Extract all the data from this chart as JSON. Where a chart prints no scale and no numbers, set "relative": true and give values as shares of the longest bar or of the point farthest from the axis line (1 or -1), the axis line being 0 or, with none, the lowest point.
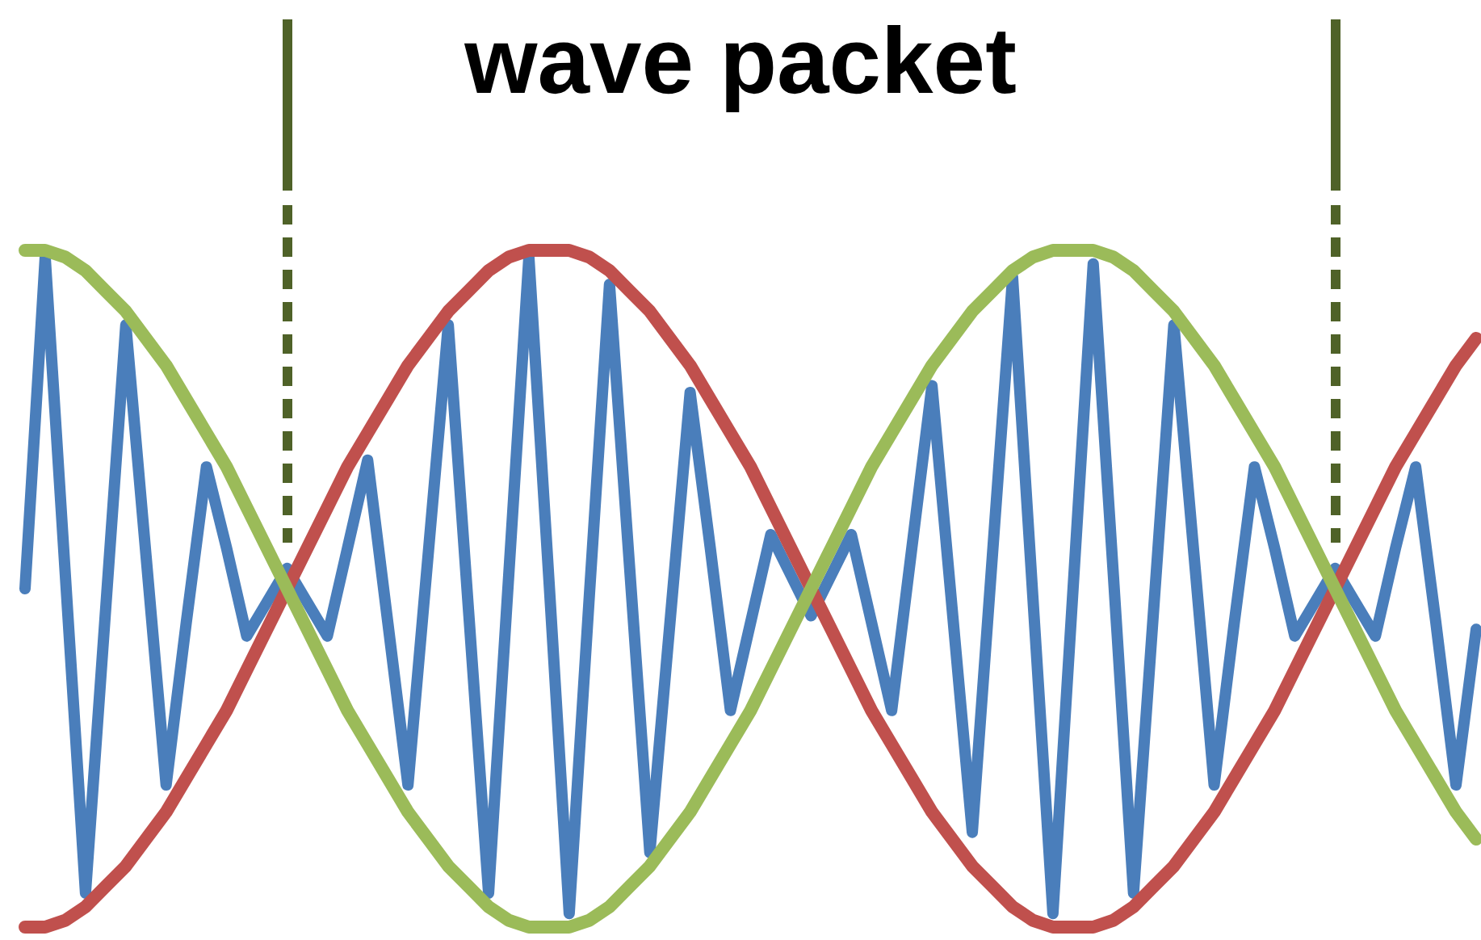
{
  "chart_data": {
    "type": "line",
    "title": "wave packet",
    "relative": true,
    "marker": "none",
    "categories": [
      null,
      null,
      null,
      null,
      null,
      null,
      null,
      null,
      null,
      null,
      null,
      null,
      null,
      null,
      null,
      null,
      null,
      null,
      null,
      null,
      null,
      null,
      null,
      null,
      null,
      null,
      null,
      null,
      null,
      null,
      null,
      null,
      null,
      null,
      null,
      null,
      null,
      null,
      null,
      null,
      null,
      null,
      null,
      null,
      null,
      null,
      null,
      null,
      null,
      null,
      null,
      null,
      null,
      null,
      null,
      null,
      null,
      null,
      null,
      null,
      null,
      null,
      null,
      null,
      null,
      null,
      null,
      null,
      null,
      null,
      null,
      null,
      null
    ],
    "series": [
      {
        "color": "#4a7ebb",
        "values": [
          0.5,
          0.99,
          0.52,
          0.05,
          0.47,
          0.89,
          0.55,
          0.21,
          0.45,
          0.68,
          0.56,
          0.43,
          0.48,
          0.53,
          0.48,
          0.43,
          0.56,
          0.69,
          0.45,
          0.21,
          0.55,
          0.89,
          0.47,
          0.05,
          0.52,
          0.99,
          0.51,
          0.02,
          0.49,
          0.95,
          0.53,
          0.11,
          0.45,
          0.79,
          0.56,
          0.32,
          0.45,
          0.58,
          0.52,
          0.46,
          0.52,
          0.58,
          0.45,
          0.32,
          0.56,
          0.8,
          0.47,
          0.14,
          0.55,
          0.96,
          0.49,
          0.02,
          0.5,
          0.98,
          0.52,
          0.05,
          0.47,
          0.89,
          0.55,
          0.21,
          0.45,
          0.68,
          0.56,
          0.43,
          0.48,
          0.53,
          0.48,
          0.43,
          0.56,
          0.68,
          0.45,
          0.21,
          0.44
        ]
      },
      {
        "color": "#c0504d",
        "values": [
          0,
          0,
          0.01,
          0.03,
          0.06,
          0.09,
          0.13,
          0.17,
          0.22,
          0.27,
          0.32,
          0.38,
          0.44,
          0.5,
          0.56,
          0.62,
          0.68,
          0.73,
          0.78,
          0.83,
          0.87,
          0.91,
          0.94,
          0.97,
          0.99,
          1,
          1,
          1,
          0.99,
          0.97,
          0.94,
          0.91,
          0.87,
          0.83,
          0.78,
          0.73,
          0.68,
          0.62,
          0.56,
          0.5,
          0.44,
          0.38,
          0.32,
          0.27,
          0.22,
          0.17,
          0.13,
          0.09,
          0.06,
          0.03,
          0.01,
          0,
          0,
          0,
          0.01,
          0.03,
          0.06,
          0.09,
          0.13,
          0.17,
          0.22,
          0.27,
          0.32,
          0.38,
          0.44,
          0.5,
          0.56,
          0.62,
          0.68,
          0.73,
          0.78,
          0.83,
          0.87
        ]
      },
      {
        "color": "#9bbb59",
        "values": [
          1,
          1,
          0.99,
          0.97,
          0.94,
          0.91,
          0.87,
          0.83,
          0.78,
          0.73,
          0.68,
          0.62,
          0.56,
          0.5,
          0.44,
          0.38,
          0.32,
          0.27,
          0.22,
          0.17,
          0.13,
          0.09,
          0.06,
          0.03,
          0.01,
          0,
          0,
          0,
          0.01,
          0.03,
          0.06,
          0.09,
          0.13,
          0.17,
          0.22,
          0.27,
          0.32,
          0.38,
          0.44,
          0.5,
          0.56,
          0.62,
          0.68,
          0.73,
          0.78,
          0.83,
          0.87,
          0.91,
          0.94,
          0.97,
          0.99,
          1,
          1,
          1,
          0.99,
          0.97,
          0.94,
          0.91,
          0.87,
          0.83,
          0.78,
          0.73,
          0.68,
          0.62,
          0.56,
          0.5,
          0.44,
          0.38,
          0.32,
          0.27,
          0.22,
          0.17,
          0.13
        ]
      }
    ]
  }
}
